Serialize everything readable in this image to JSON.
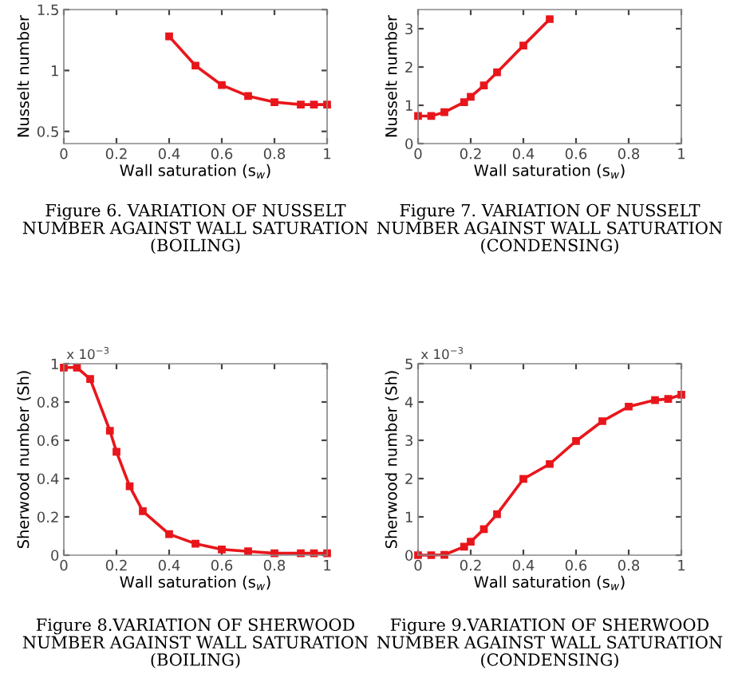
{
  "chart_data": [
    {
      "type": "line",
      "xlabel": "Wall saturation (s$_{w}$)",
      "ylabel": "Nusselt number",
      "x": [
        0.4,
        0.5,
        0.6,
        0.7,
        0.8,
        0.9,
        0.95,
        1.0
      ],
      "series": [
        {
          "color": "#e8161b",
          "values": [
            1.28,
            1.04,
            0.88,
            0.79,
            0.74,
            0.72,
            0.72,
            0.72
          ]
        }
      ],
      "xlim": [
        0,
        1
      ],
      "xticks": [
        0,
        0.2,
        0.4,
        0.6,
        0.8,
        1
      ],
      "ylim": [
        0.4,
        1.5
      ],
      "yticks": [
        0.5,
        1,
        1.5
      ],
      "marker": "square",
      "grid": false,
      "legend": false,
      "annotations": [
        "Figure 6. VARIATION OF NUSSELT\nNUMBER AGAINST WALL SATURATION\n(BOILING)"
      ]
    },
    {
      "type": "line",
      "xlabel": "Wall saturation (s$_{w}$)",
      "ylabel": "Nusselt number",
      "x": [
        0,
        0.05,
        0.1,
        0.175,
        0.2,
        0.25,
        0.3,
        0.4,
        0.5
      ],
      "series": [
        {
          "color": "#e8161b",
          "values": [
            0.72,
            0.72,
            0.82,
            1.08,
            1.22,
            1.52,
            1.86,
            2.56,
            3.25
          ]
        }
      ],
      "xlim": [
        0,
        1
      ],
      "xticks": [
        0,
        0.2,
        0.4,
        0.6,
        0.8,
        1
      ],
      "ylim": [
        0,
        3.5
      ],
      "yticks": [
        0,
        1,
        2,
        3
      ],
      "marker": "square",
      "grid": false,
      "legend": false,
      "annotations": [
        "Figure 7. VARIATION OF NUSSELT\nNUMBER AGAINST WALL SATURATION\n(CONDENSING)"
      ]
    },
    {
      "type": "line",
      "xlabel": "Wall saturation (s$_{w}$)",
      "ylabel": "Sherwood number (Sh)",
      "x": [
        0,
        0.05,
        0.1,
        0.175,
        0.2,
        0.25,
        0.3,
        0.4,
        0.5,
        0.6,
        0.7,
        0.8,
        0.9,
        0.95,
        1.0
      ],
      "series": [
        {
          "color": "#e8161b",
          "values": [
            0.98,
            0.98,
            0.92,
            0.65,
            0.54,
            0.36,
            0.23,
            0.11,
            0.06,
            0.03,
            0.02,
            0.01,
            0.01,
            0.01,
            0.01
          ]
        }
      ],
      "xlim": [
        0,
        1
      ],
      "xticks": [
        0,
        0.2,
        0.4,
        0.6,
        0.8,
        1
      ],
      "ylim": [
        0,
        1
      ],
      "yticks": [
        0,
        0.2,
        0.4,
        0.6,
        0.8,
        1
      ],
      "marker": "square",
      "grid": false,
      "legend": false,
      "annotations": [
        "x 10$^{−3}$",
        "Figure 8.VARIATION OF SHERWOOD\nNUMBER AGAINST WALL SATURATION\n(BOILING)"
      ]
    },
    {
      "type": "line",
      "xlabel": "Wall saturation (s$_{w}$)",
      "ylabel": "Sherwood number (Sh)",
      "x": [
        0,
        0.05,
        0.1,
        0.175,
        0.2,
        0.25,
        0.3,
        0.4,
        0.5,
        0.6,
        0.7,
        0.8,
        0.9,
        0.95,
        1.0
      ],
      "series": [
        {
          "color": "#e8161b",
          "values": [
            0,
            0,
            0.01,
            0.22,
            0.35,
            0.68,
            1.07,
            1.99,
            2.38,
            2.98,
            3.5,
            3.88,
            4.05,
            4.08,
            4.19
          ]
        }
      ],
      "xlim": [
        0,
        1
      ],
      "xticks": [
        0,
        0.2,
        0.4,
        0.6,
        0.8,
        1
      ],
      "ylim": [
        0,
        5
      ],
      "yticks": [
        0,
        1,
        2,
        3,
        4,
        5
      ],
      "marker": "square",
      "grid": false,
      "legend": false,
      "annotations": [
        "x 10$^{−3}$",
        "Figure 9.VARIATION OF SHERWOOD\nNUMBER AGAINST WALL SATURATION\n(CONDENSING)"
      ]
    }
  ]
}
